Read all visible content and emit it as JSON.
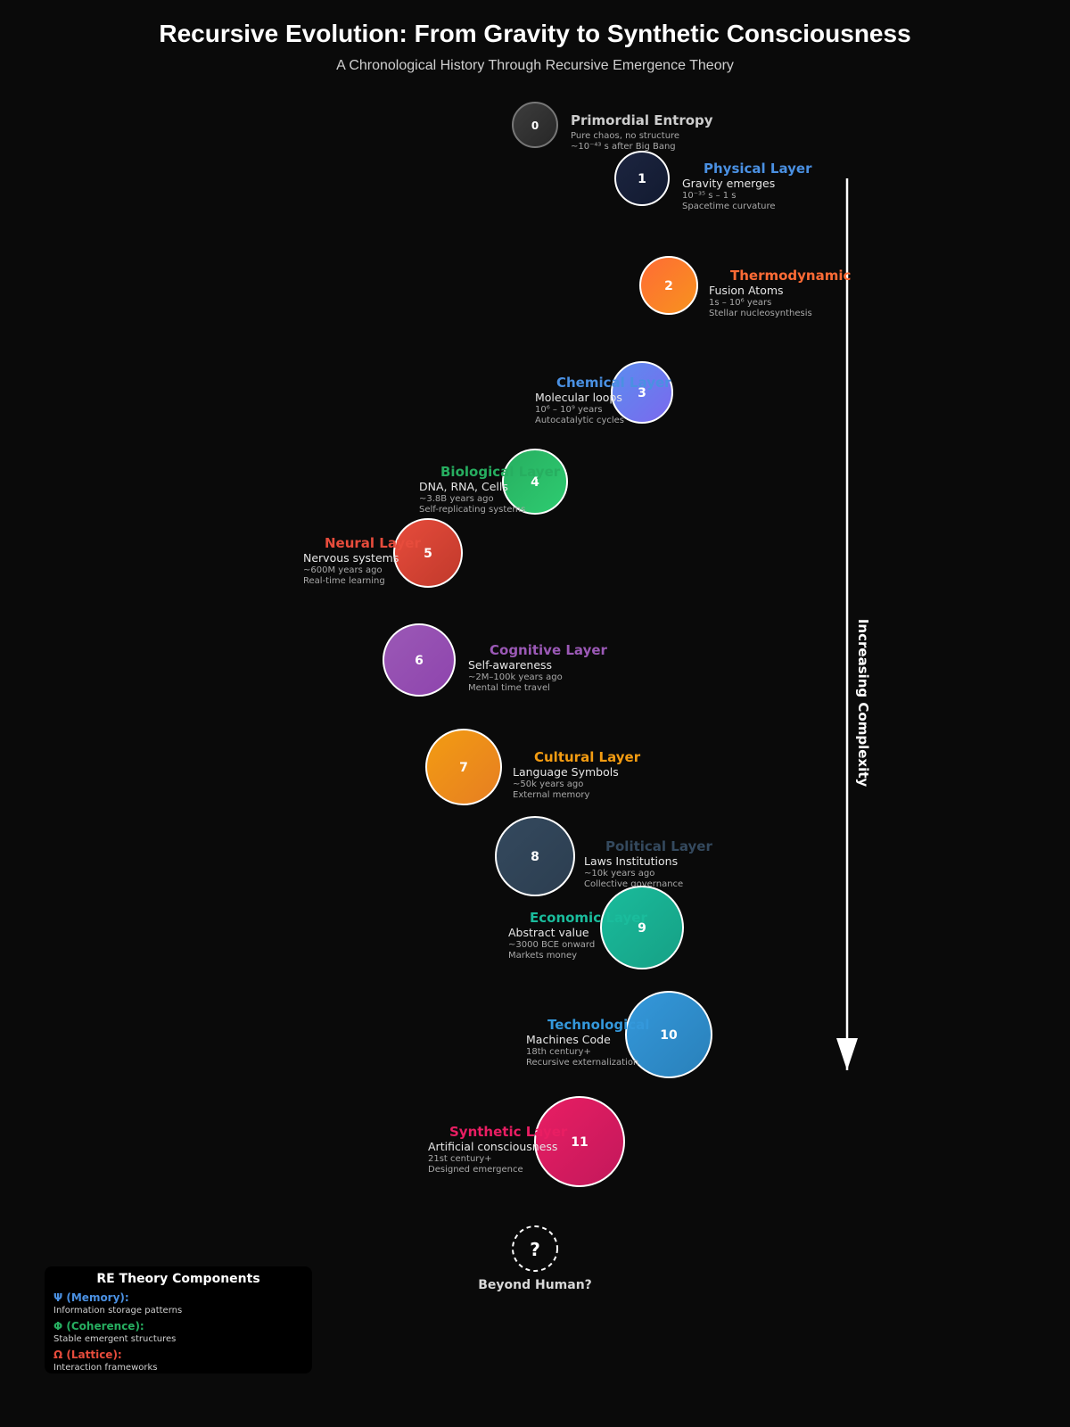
{
  "header": {
    "title": "Recursive Evolution: From Gravity to Synthetic Consciousness",
    "subtitle": "A Chronological History Through Recursive Emergence Theory"
  },
  "layers": [
    {
      "number": "0",
      "title": "Primordial Entropy",
      "description": "",
      "time": "Pure chaos, no structure",
      "note": "~10⁻⁴³ s after Big Bang",
      "color": "#cccccc"
    },
    {
      "number": "1",
      "title": "Physical Layer",
      "description": "Gravity emerges",
      "time": "10⁻³⁵ s – 1 s",
      "note": "Spacetime curvature",
      "color": "#4a90e2"
    },
    {
      "number": "2",
      "title": "Thermodynamic",
      "description": "Fusion Atoms",
      "time": "1s – 10⁶ years",
      "note": "Stellar nucleosynthesis",
      "color": "#ff6b35"
    },
    {
      "number": "3",
      "title": "Chemical Layer",
      "description": "Molecular loops",
      "time": "10⁶ – 10⁹ years",
      "note": "Autocatalytic cycles",
      "color": "#4a90e2"
    },
    {
      "number": "4",
      "title": "Biological Layer",
      "description": "DNA, RNA, Cells",
      "time": "~3.8B years ago",
      "note": "Self-replicating systems",
      "color": "#27ae60"
    },
    {
      "number": "5",
      "title": "Neural Layer",
      "description": "Nervous systems",
      "time": "~600M years ago",
      "note": "Real-time learning",
      "color": "#e74c3c"
    },
    {
      "number": "6",
      "title": "Cognitive Layer",
      "description": "Self-awareness",
      "time": "~2M–100k years ago",
      "note": "Mental time travel",
      "color": "#9b59b6"
    },
    {
      "number": "7",
      "title": "Cultural Layer",
      "description": "Language Symbols",
      "time": "~50k years ago",
      "note": "External memory",
      "color": "#f39c12"
    },
    {
      "number": "8",
      "title": "Political Layer",
      "description": "Laws Institutions",
      "time": "~10k years ago",
      "note": "Collective governance",
      "color": "#34495e"
    },
    {
      "number": "9",
      "title": "Economic Layer",
      "description": "Abstract value",
      "time": "~3000 BCE onward",
      "note": "Markets money",
      "color": "#1abc9c"
    },
    {
      "number": "10",
      "title": "Technological",
      "description": "Machines Code",
      "time": "18th century+",
      "note": "Recursive externalization",
      "color": "#3498db"
    },
    {
      "number": "11",
      "title": "Synthetic Layer",
      "description": "Artificial consciousness",
      "time": "21st century+",
      "note": "Designed emergence",
      "color": "#e91e63"
    }
  ],
  "beyond": {
    "symbol": "?",
    "label": "Beyond Human?"
  },
  "axis": {
    "label": "Increasing Complexity"
  },
  "legend": {
    "title": "RE Theory Components",
    "items": [
      {
        "name": "Ψ (Memory):",
        "desc": "Information storage patterns",
        "color": "#4a90e2"
      },
      {
        "name": "Φ (Coherence):",
        "desc": "Stable emergent structures",
        "color": "#27ae60"
      },
      {
        "name": "Ω (Lattice):",
        "desc": "Interaction frameworks",
        "color": "#e74c3c"
      }
    ]
  }
}
